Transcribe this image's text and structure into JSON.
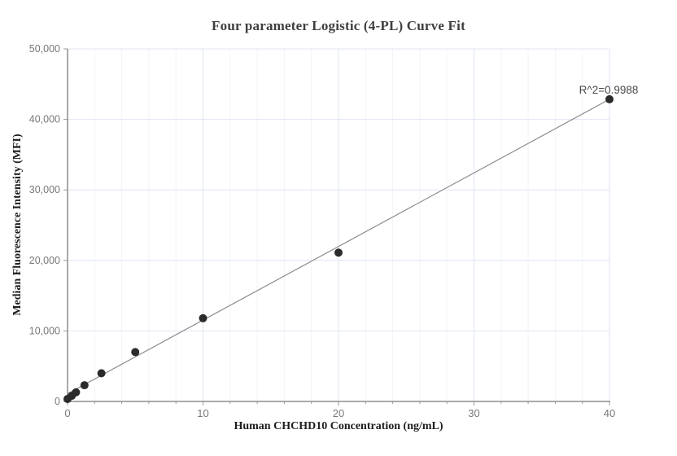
{
  "chart_data": {
    "type": "scatter",
    "title": "Four parameter Logistic (4-PL) Curve Fit",
    "xlabel": "Human CHCHD10 Concentration (ng/mL)",
    "ylabel": "Median Fluorescence Intensity (MFI)",
    "xlim": [
      0,
      40
    ],
    "ylim": [
      0,
      50000
    ],
    "x_ticks": [
      0,
      10,
      20,
      30,
      40
    ],
    "x_tick_labels": [
      "0",
      "10",
      "20",
      "30",
      "40"
    ],
    "x_minor_step": 2,
    "y_ticks": [
      0,
      10000,
      20000,
      30000,
      40000,
      50000
    ],
    "y_tick_labels": [
      "0",
      "10,000",
      "20,000",
      "30,000",
      "40,000",
      "50,000"
    ],
    "grid": "on",
    "legend": "none",
    "points": [
      {
        "x": 0,
        "y": 350
      },
      {
        "x": 0.313,
        "y": 800
      },
      {
        "x": 0.625,
        "y": 1300
      },
      {
        "x": 1.25,
        "y": 2300
      },
      {
        "x": 2.5,
        "y": 4000
      },
      {
        "x": 5,
        "y": 7000
      },
      {
        "x": 10,
        "y": 11800
      },
      {
        "x": 20,
        "y": 21100
      },
      {
        "x": 40,
        "y": 42850
      }
    ],
    "fit_line": {
      "x1": 0,
      "y1": 1100,
      "x2": 40,
      "y2": 42850
    },
    "annotation": {
      "text": "R^2=0.9988",
      "anchor_x": 40,
      "anchor_y": 46000
    },
    "colors": {
      "point": "#2b2b2b",
      "fit_line": "#8c8c8c",
      "axis": "#565656",
      "tick": "#9a9a9a",
      "tick_label": "#787878",
      "grid_major": "#dfe5f2",
      "grid_minor": "#f2f4fa",
      "title": "#3f3f3f",
      "axis_title": "#1d1d1d",
      "background": "#ffffff"
    }
  }
}
